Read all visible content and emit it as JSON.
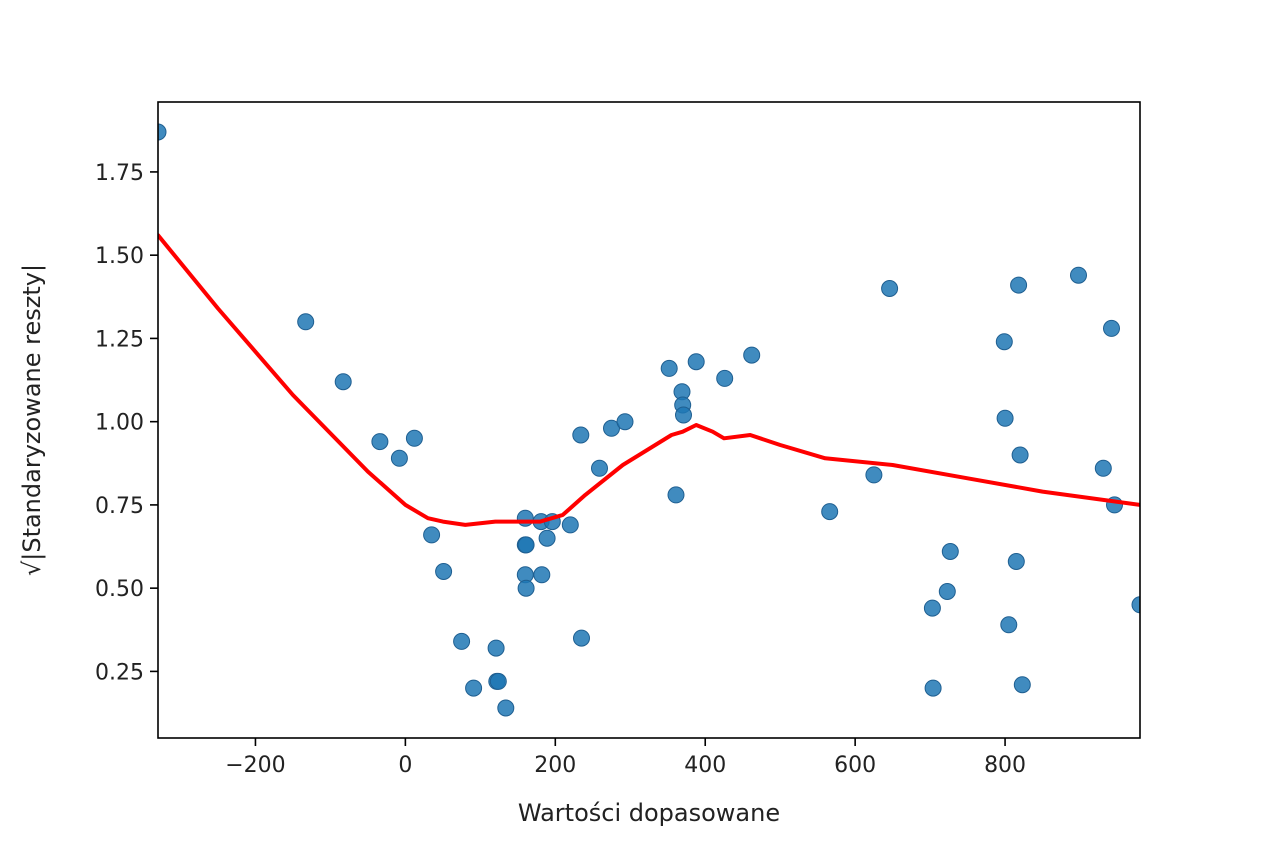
{
  "chart_data": {
    "type": "scatter",
    "title": "",
    "xlabel": "Wartości dopasowane",
    "ylabel": "√|Standaryzowane reszty|",
    "xlim": [
      -330,
      980
    ],
    "ylim": [
      0.05,
      1.96
    ],
    "xticks": [
      -200,
      0,
      200,
      400,
      600,
      800
    ],
    "xtick_labels": [
      "−200",
      "0",
      "200",
      "400",
      "600",
      "800"
    ],
    "yticks": [
      0.25,
      0.5,
      0.75,
      1.0,
      1.25,
      1.5,
      1.75
    ],
    "ytick_labels": [
      "0.25",
      "0.50",
      "0.75",
      "1.00",
      "1.25",
      "1.50",
      "1.75"
    ],
    "grid": false,
    "legend": "none",
    "colors": {
      "points": "#1f77b4",
      "line": "#ff0000"
    },
    "series": [
      {
        "kind": "scatter",
        "points": [
          [
            -330,
            1.87
          ],
          [
            -133,
            1.3
          ],
          [
            -83,
            1.12
          ],
          [
            -34,
            0.94
          ],
          [
            -8,
            0.89
          ],
          [
            12,
            0.95
          ],
          [
            35,
            0.66
          ],
          [
            51,
            0.55
          ],
          [
            75,
            0.34
          ],
          [
            91,
            0.2
          ],
          [
            121,
            0.32
          ],
          [
            122,
            0.22
          ],
          [
            124,
            0.22
          ],
          [
            134,
            0.14
          ],
          [
            160,
            0.71
          ],
          [
            160,
            0.63
          ],
          [
            161,
            0.63
          ],
          [
            160,
            0.54
          ],
          [
            161,
            0.5
          ],
          [
            181,
            0.7
          ],
          [
            182,
            0.54
          ],
          [
            189,
            0.65
          ],
          [
            196,
            0.7
          ],
          [
            220,
            0.69
          ],
          [
            234,
            0.96
          ],
          [
            235,
            0.35
          ],
          [
            259,
            0.86
          ],
          [
            275,
            0.98
          ],
          [
            293,
            1.0
          ],
          [
            352,
            1.16
          ],
          [
            361,
            0.78
          ],
          [
            369,
            1.09
          ],
          [
            370,
            1.05
          ],
          [
            371,
            1.02
          ],
          [
            388,
            1.18
          ],
          [
            426,
            1.13
          ],
          [
            462,
            1.2
          ],
          [
            566,
            0.73
          ],
          [
            625,
            0.84
          ],
          [
            646,
            1.4
          ],
          [
            703,
            0.44
          ],
          [
            704,
            0.2
          ],
          [
            723,
            0.49
          ],
          [
            727,
            0.61
          ],
          [
            799,
            1.24
          ],
          [
            800,
            1.01
          ],
          [
            805,
            0.39
          ],
          [
            815,
            0.58
          ],
          [
            818,
            1.41
          ],
          [
            820,
            0.9
          ],
          [
            823,
            0.21
          ],
          [
            898,
            1.44
          ],
          [
            931,
            0.86
          ],
          [
            942,
            1.28
          ],
          [
            946,
            0.75
          ],
          [
            980,
            0.45
          ]
        ]
      },
      {
        "kind": "line",
        "points": [
          [
            -330,
            1.56
          ],
          [
            -250,
            1.34
          ],
          [
            -150,
            1.08
          ],
          [
            -50,
            0.85
          ],
          [
            0,
            0.75
          ],
          [
            30,
            0.71
          ],
          [
            50,
            0.7
          ],
          [
            80,
            0.69
          ],
          [
            120,
            0.7
          ],
          [
            180,
            0.7
          ],
          [
            210,
            0.72
          ],
          [
            240,
            0.78
          ],
          [
            290,
            0.87
          ],
          [
            355,
            0.96
          ],
          [
            370,
            0.97
          ],
          [
            388,
            0.99
          ],
          [
            410,
            0.97
          ],
          [
            425,
            0.95
          ],
          [
            460,
            0.96
          ],
          [
            500,
            0.93
          ],
          [
            560,
            0.89
          ],
          [
            650,
            0.87
          ],
          [
            750,
            0.83
          ],
          [
            850,
            0.79
          ],
          [
            980,
            0.75
          ]
        ]
      }
    ]
  }
}
